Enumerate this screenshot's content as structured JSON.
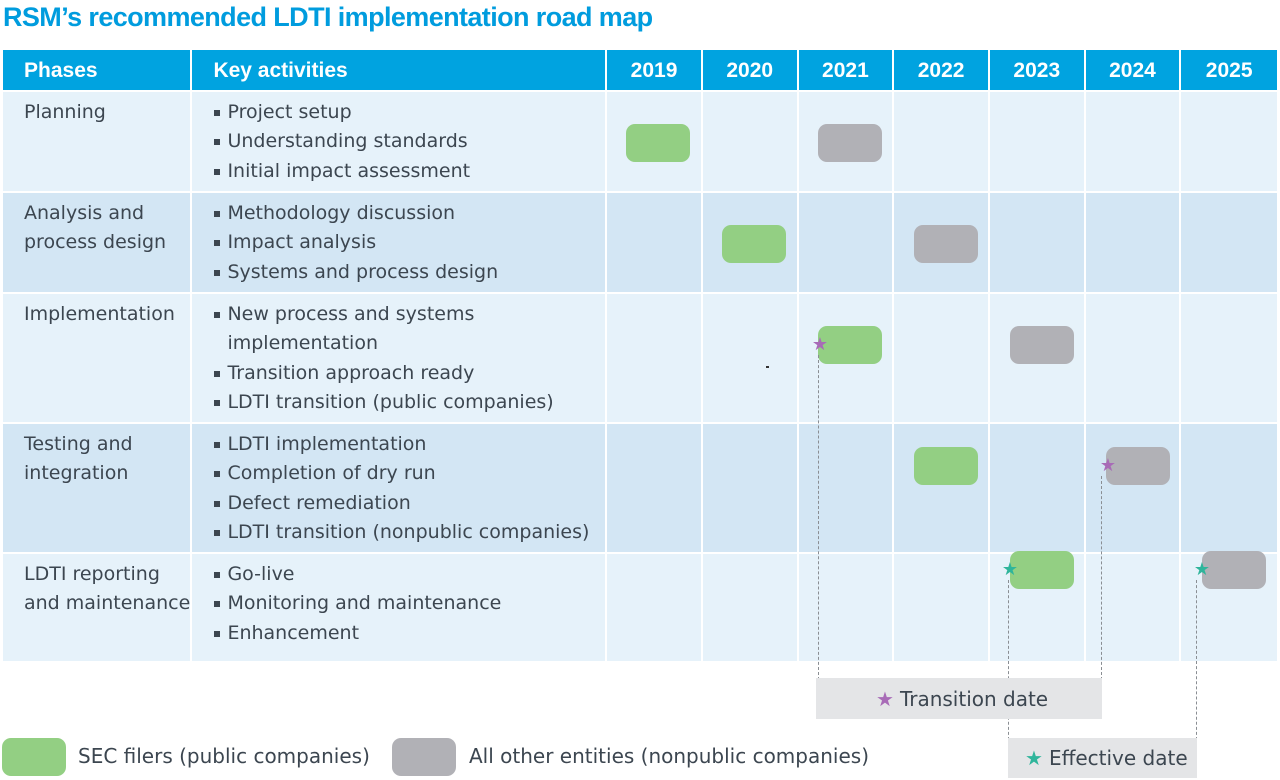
{
  "title": "RSM’s recommended LDTI implementation road map",
  "header": {
    "phases": "Phases",
    "activities": "Key activities",
    "years": [
      "2019",
      "2020",
      "2021",
      "2022",
      "2023",
      "2024",
      "2025"
    ]
  },
  "rows": [
    {
      "phase": "Planning",
      "activities": [
        "Project setup",
        "Understanding standards",
        "Initial impact assessment"
      ],
      "sec_year": "2019",
      "other_year": "2021"
    },
    {
      "phase": "Analysis and process design",
      "activities": [
        "Methodology discussion",
        "Impact analysis",
        "Systems and process design"
      ],
      "sec_year": "2020",
      "other_year": "2022"
    },
    {
      "phase": "Implementation",
      "activities": [
        "New process and systems implementation",
        "Transition approach ready",
        "LDTI transition (public companies)"
      ],
      "sec_year": "2021",
      "other_year": "2023",
      "marker": "transition"
    },
    {
      "phase": "Testing and integration",
      "activities": [
        "LDTI implementation",
        "Completion of dry run",
        "Defect remediation",
        "LDTI transition (nonpublic companies)"
      ],
      "sec_year": "2022",
      "other_year": "2024",
      "marker": "transition"
    },
    {
      "phase": "LDTI reporting and maintenance",
      "activities": [
        "Go-live",
        "Monitoring and maintenance",
        "Enhancement"
      ],
      "sec_year": "2023",
      "other_year": "2025",
      "marker": "effective"
    }
  ],
  "callouts": {
    "transition": "Transition date",
    "effective": "Effective date"
  },
  "legend": {
    "sec": "SEC filers (public companies)",
    "other": "All other entities (nonpublic companies)"
  },
  "colors": {
    "header": "#00a3e0",
    "title": "#009cde",
    "sec": "#93cf83",
    "other": "#b1b1b6",
    "transition_star": "#a86bb7",
    "effective_star": "#2fb59b"
  },
  "icons": {
    "transition": "purple-star-icon",
    "effective": "teal-star-icon"
  }
}
